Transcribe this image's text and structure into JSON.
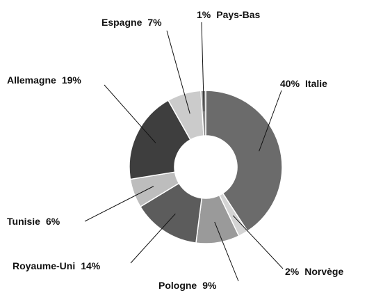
{
  "chart_data": {
    "type": "donut",
    "categories": [
      "Italie",
      "Norvège",
      "Pologne",
      "Royaume-Uni",
      "Tunisie",
      "Allemagne",
      "Espagne",
      "Pays-Bas"
    ],
    "values": [
      40,
      2,
      9,
      14,
      6,
      19,
      7,
      1
    ],
    "value_labels": [
      "40%",
      "2%",
      "9%",
      "14%",
      "6%",
      "19%",
      "7%",
      "1%"
    ],
    "colors": [
      "#6b6b6b",
      "#d4d4d4",
      "#9a9a9a",
      "#5c5c5c",
      "#bdbdbd",
      "#3e3e3e",
      "#cbcbcb",
      "#8a8a8a"
    ]
  }
}
